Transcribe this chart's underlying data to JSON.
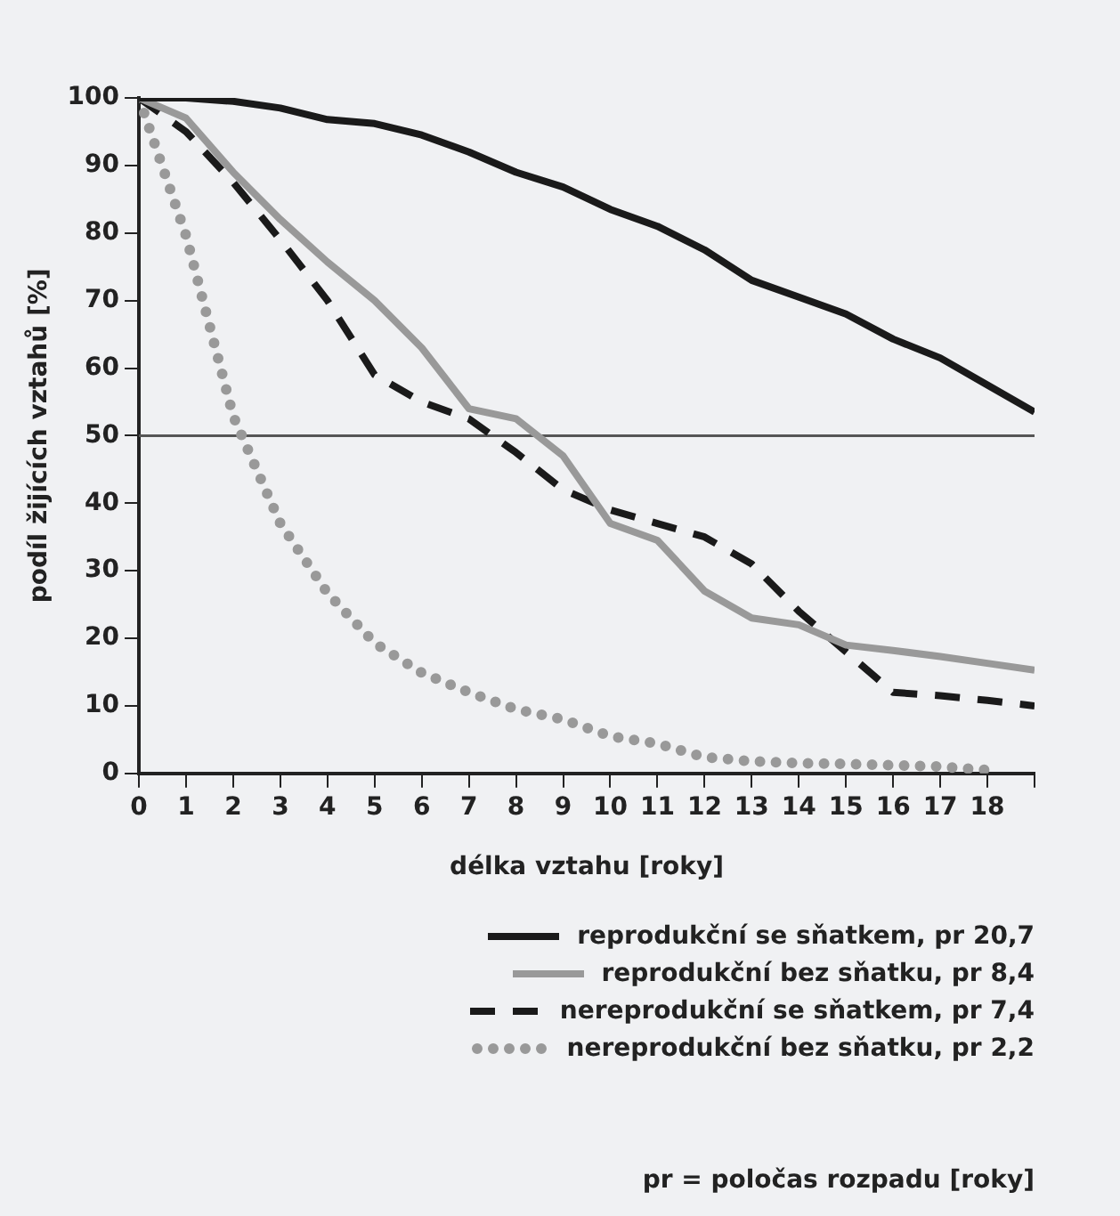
{
  "chart_data": {
    "type": "line",
    "xlabel": "délka vztahu [roky]",
    "ylabel": "podíl žijících vztahů [%]",
    "x": [
      0,
      1,
      2,
      3,
      4,
      5,
      6,
      7,
      8,
      9,
      10,
      11,
      12,
      13,
      14,
      15,
      16,
      17,
      18,
      19
    ],
    "xlim": [
      0,
      19
    ],
    "xticks": [
      0,
      1,
      2,
      3,
      4,
      5,
      6,
      7,
      8,
      9,
      10,
      11,
      12,
      13,
      14,
      15,
      16,
      17,
      18,
      {
        "value": 19,
        "label": null
      }
    ],
    "ylim": [
      0,
      100
    ],
    "yticks": [
      0,
      10,
      20,
      30,
      40,
      50,
      60,
      70,
      80,
      90,
      100
    ],
    "marker": "none",
    "legend": "bottom right",
    "ref_lines": [
      {
        "axis": "y",
        "value": 50,
        "color": "#555555"
      }
    ],
    "series": [
      {
        "name": "reprodukční se sňatkem, pr 20,7",
        "color": "#1a1a1a",
        "line_style": "solid",
        "values": [
          100,
          100,
          99.5,
          98.5,
          96.8,
          96.2,
          94.5,
          92,
          89,
          86.8,
          83.5,
          81,
          77.5,
          73,
          70.5,
          68,
          64.3,
          61.5,
          57.5,
          53.5
        ]
      },
      {
        "name": "reprodukční bez sňatku, pr 8,4",
        "color": "#999999",
        "line_style": "solid",
        "values": [
          100,
          97,
          89,
          82,
          75.7,
          70,
          63,
          54,
          52.5,
          47,
          37,
          34.5,
          27,
          23,
          22,
          19,
          18.2,
          17.3,
          16.3,
          15.3
        ]
      },
      {
        "name": "nereprodukční se sňatkem, pr 7,4",
        "color": "#1a1a1a",
        "line_style": "dashed",
        "values": [
          100,
          95,
          87.5,
          79,
          70,
          59,
          55,
          52.5,
          47.5,
          42,
          39,
          37,
          35,
          31,
          24,
          18,
          12,
          11.5,
          10.8,
          10
        ]
      },
      {
        "name": "nereprodukční bez sňatku, pr 2,2",
        "color": "#999999",
        "line_style": "dotted",
        "values": [
          100,
          79.6,
          52.9,
          37,
          26.7,
          19.3,
          14.9,
          12,
          9.5,
          8,
          5.5,
          4.4,
          2.4,
          1.8,
          1.5,
          1.4,
          1.2,
          1,
          0.5,
          null
        ]
      }
    ],
    "annotations": [
      "pr = poločas rozpadu [roky]"
    ]
  }
}
